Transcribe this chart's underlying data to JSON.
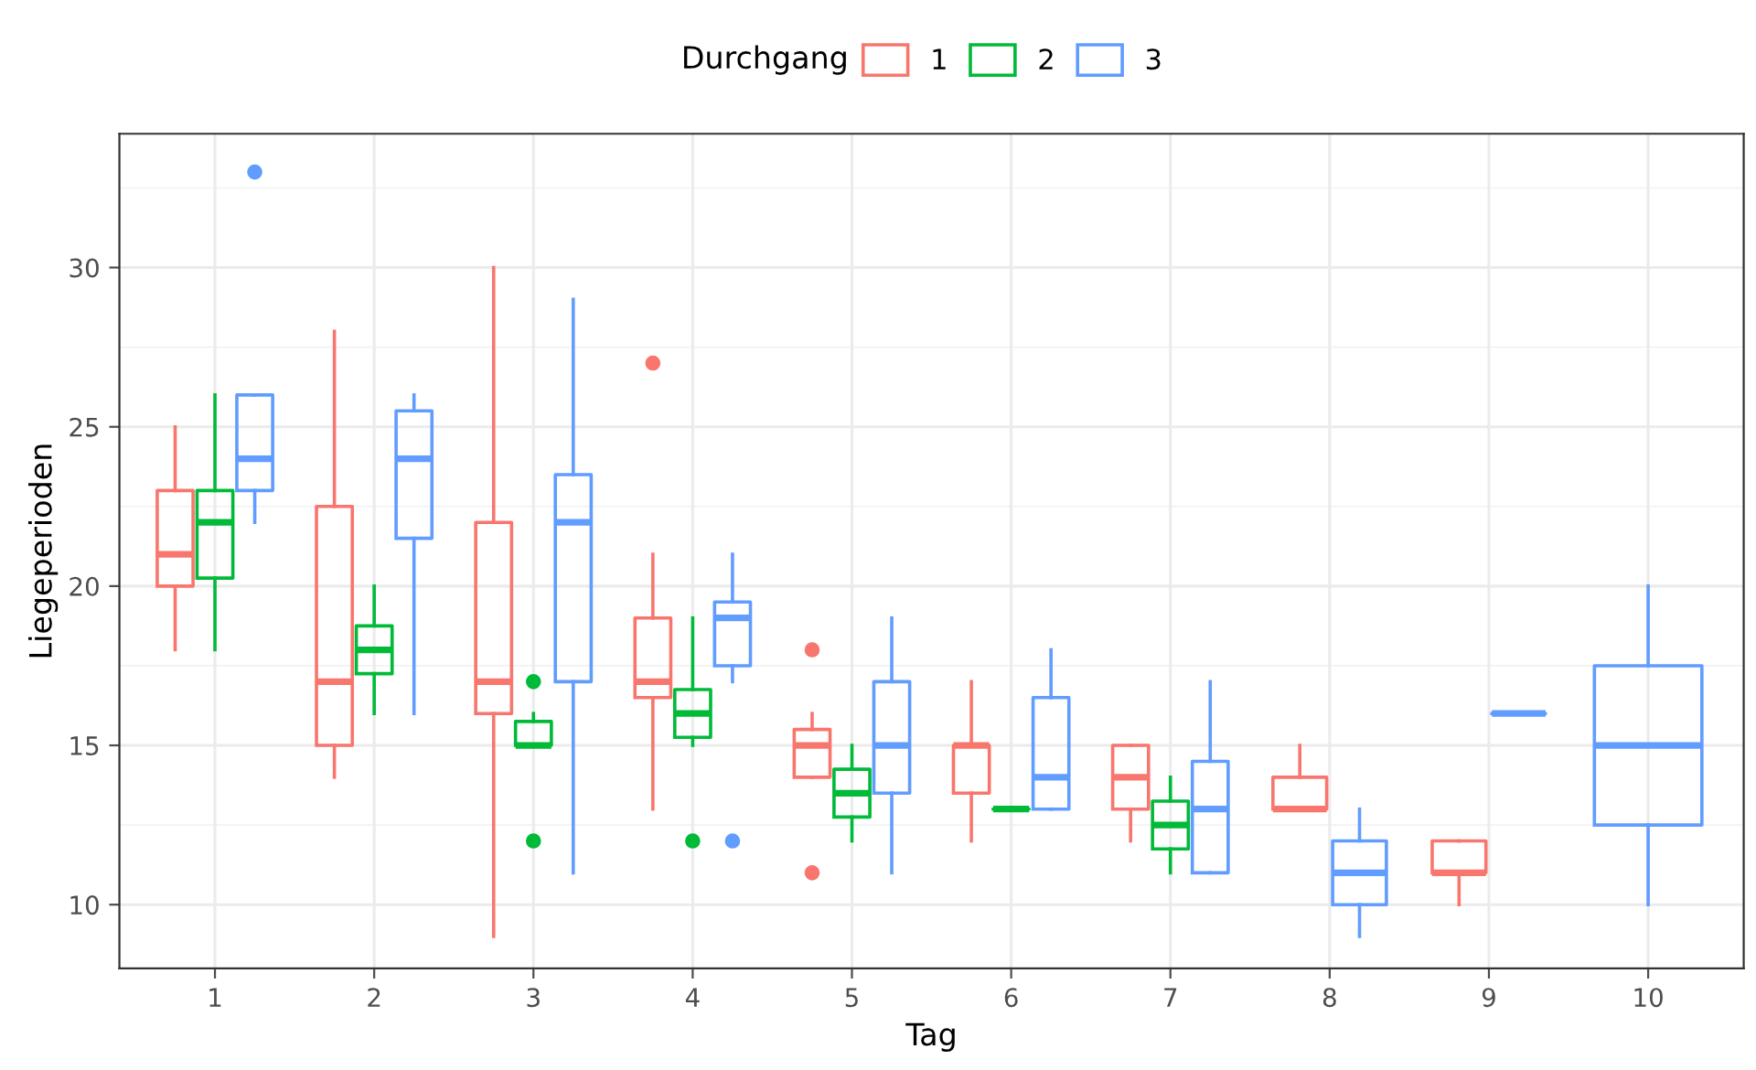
{
  "chart_data": {
    "type": "box",
    "xlabel": "Tag",
    "ylabel": "Liegeperioden",
    "legend_title": "Durchgang",
    "legend": "top",
    "grid": true,
    "categories": [
      "1",
      "2",
      "3",
      "4",
      "5",
      "6",
      "7",
      "8",
      "9",
      "10"
    ],
    "ylim": [
      8.0,
      34.2
    ],
    "yticks": [
      10,
      15,
      20,
      25,
      30
    ],
    "series": [
      {
        "name": "1",
        "color": "#f8766d",
        "boxes": [
          {
            "low": 18,
            "q1": 20,
            "median": 21,
            "q3": 23,
            "high": 25
          },
          {
            "low": 14,
            "q1": 15,
            "median": 17,
            "q3": 22.5,
            "high": 28
          },
          {
            "low": 9,
            "q1": 16,
            "median": 17,
            "q3": 22,
            "high": 30
          },
          {
            "low": 13,
            "q1": 16.5,
            "median": 17,
            "q3": 19,
            "high": 21,
            "outliers": [
              27
            ]
          },
          {
            "low": 14,
            "q1": 14,
            "median": 15,
            "q3": 15.5,
            "high": 16,
            "outliers": [
              18,
              11
            ]
          },
          {
            "low": 12,
            "q1": 13.5,
            "median": 15,
            "q3": 15,
            "high": 17
          },
          {
            "low": 12,
            "q1": 13,
            "median": 14,
            "q3": 15,
            "high": 15
          },
          {
            "low": 13,
            "q1": 13,
            "median": 13,
            "q3": 14,
            "high": 15
          },
          {
            "low": 10,
            "q1": 11,
            "median": 11,
            "q3": 12,
            "high": 12
          },
          null
        ]
      },
      {
        "name": "2",
        "color": "#00ba38",
        "boxes": [
          {
            "low": 18,
            "q1": 20.25,
            "median": 22,
            "q3": 23,
            "high": 26
          },
          {
            "low": 16,
            "q1": 17.25,
            "median": 18,
            "q3": 18.75,
            "high": 20
          },
          {
            "low": 15,
            "q1": 15,
            "median": 15,
            "q3": 15.75,
            "high": 16,
            "outliers": [
              17,
              12
            ]
          },
          {
            "low": 15,
            "q1": 15.25,
            "median": 16,
            "q3": 16.75,
            "high": 19,
            "outliers": [
              12
            ]
          },
          {
            "low": 12,
            "q1": 12.75,
            "median": 13.5,
            "q3": 14.25,
            "high": 15
          },
          {
            "low": 13,
            "q1": 13,
            "median": 13,
            "q3": 13,
            "high": 13
          },
          {
            "low": 11,
            "q1": 11.75,
            "median": 12.5,
            "q3": 13.25,
            "high": 14
          },
          null,
          null,
          null
        ]
      },
      {
        "name": "3",
        "color": "#619cff",
        "boxes": [
          {
            "low": 22,
            "q1": 23,
            "median": 24,
            "q3": 26,
            "high": 26,
            "outliers": [
              33
            ]
          },
          {
            "low": 16,
            "q1": 21.5,
            "median": 24,
            "q3": 25.5,
            "high": 26
          },
          {
            "low": 11,
            "q1": 17,
            "median": 22,
            "q3": 23.5,
            "high": 29
          },
          {
            "low": 17,
            "q1": 17.5,
            "median": 19,
            "q3": 19.5,
            "high": 21,
            "outliers": [
              12
            ]
          },
          {
            "low": 11,
            "q1": 13.5,
            "median": 15,
            "q3": 17,
            "high": 19
          },
          {
            "low": 13,
            "q1": 13,
            "median": 14,
            "q3": 16.5,
            "high": 18
          },
          {
            "low": 11,
            "q1": 11,
            "median": 13,
            "q3": 14.5,
            "high": 17
          },
          {
            "low": 9,
            "q1": 10,
            "median": 11,
            "q3": 12,
            "high": 13
          },
          {
            "low": 16,
            "q1": 16,
            "median": 16,
            "q3": 16,
            "high": 16
          },
          {
            "low": 10,
            "q1": 12.5,
            "median": 15,
            "q3": 17.5,
            "high": 20
          }
        ]
      }
    ]
  }
}
